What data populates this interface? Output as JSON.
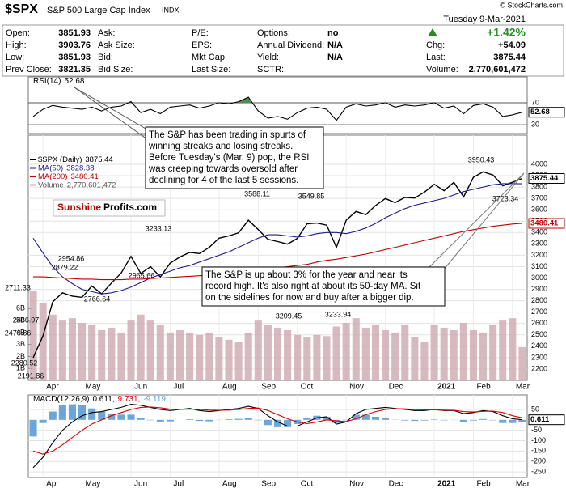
{
  "header": {
    "symbol": "$SPX",
    "name": "S&P 500 Large Cap Index",
    "exchange": "INDX",
    "copyright": "© StockCharts.com",
    "date": "Tuesday 9-Mar-2021",
    "change_pct": "+1.42%",
    "columns": [
      [
        {
          "label": "Open:",
          "value": "3851.93"
        },
        {
          "label": "High:",
          "value": "3903.76"
        },
        {
          "label": "Low:",
          "value": "3851.93"
        },
        {
          "label": "Prev Close:",
          "value": "3821.35"
        }
      ],
      [
        {
          "label": "Ask:"
        },
        {
          "label": "Ask Size:"
        },
        {
          "label": "Bid:"
        },
        {
          "label": "Bid Size:"
        }
      ],
      [
        {
          "label": "P/E:"
        },
        {
          "label": "EPS:"
        },
        {
          "label": "Mkt Cap:"
        },
        {
          "label": "Last Size:"
        }
      ],
      [
        {
          "label": "Options:",
          "value": "no"
        },
        {
          "label": "Annual Dividend:",
          "value": "N/A"
        },
        {
          "label": "Yield:",
          "value": "N/A"
        },
        {
          "label": "SCTR:"
        }
      ],
      [
        {
          "label": "Chg:",
          "value": "+54.09"
        },
        {
          "label": "Last:",
          "value": "3875.44"
        },
        {
          "label": "Volume:",
          "value": "2,770,601,472"
        }
      ]
    ]
  },
  "chart_data": [
    {
      "type": "line",
      "title": "RSI(14)",
      "ylim": [
        14,
        117
      ],
      "yticks": [
        30,
        70
      ],
      "grid": true,
      "overbought_color": "#4f8f4f",
      "series": [
        {
          "color": "#000000",
          "legend_value": "52.68",
          "label_box": true,
          "values": [
            45,
            58,
            65,
            62,
            60,
            58,
            62,
            55,
            62,
            64,
            72,
            52,
            58,
            50,
            62,
            64,
            66,
            60,
            64,
            70,
            68,
            72,
            80,
            55,
            42,
            45,
            40,
            52,
            60,
            62,
            58,
            38,
            62,
            68,
            64,
            66,
            70,
            62,
            66,
            64,
            66,
            70,
            60,
            64,
            50,
            65,
            68,
            62,
            45,
            48,
            52.68
          ]
        }
      ]
    },
    {
      "type": "line",
      "ylim": [
        2100,
        4256
      ],
      "yticks": [
        2200,
        2300,
        2400,
        2500,
        2600,
        2700,
        2800,
        2900,
        3000,
        3100,
        3200,
        3300,
        3400,
        3500,
        3600,
        3700,
        3800,
        3900,
        4000
      ],
      "grid": true,
      "y2lim": [
        0,
        20.5
      ],
      "y2ticks": [
        {
          "value": 1,
          "label": "1B"
        },
        {
          "value": 2,
          "label": "2B"
        },
        {
          "value": 3,
          "label": "3B"
        },
        {
          "value": 4,
          "label": "4B"
        },
        {
          "value": 5,
          "label": "5B"
        },
        {
          "value": 6,
          "label": "6B"
        }
      ],
      "categories": [
        null,
        "Apr",
        null,
        null,
        null,
        "May",
        null,
        null,
        null,
        null,
        "Jun",
        null,
        null,
        null,
        "Jul",
        null,
        null,
        null,
        null,
        "Aug",
        null,
        null,
        null,
        "Sep",
        null,
        null,
        null,
        "Oct",
        null,
        null,
        null,
        null,
        "Nov",
        null,
        null,
        null,
        "Dec",
        null,
        null,
        null,
        null,
        "2021",
        null,
        null,
        null,
        "Feb",
        null,
        null,
        null,
        "Mar",
        null
      ],
      "series": [
        {
          "name": "$SPX (Daily)",
          "color": "#000000",
          "legend_value": "3875.44",
          "label_box": true,
          "values": [
            2300,
            2490,
            2790,
            2870,
            2840,
            2830,
            2930,
            2860,
            2955,
            3044,
            3190,
            3040,
            3100,
            3010,
            3130,
            3185,
            3225,
            3215,
            3270,
            3350,
            3370,
            3397,
            3508,
            3426,
            3340,
            3320,
            3298,
            3348,
            3477,
            3483,
            3465,
            3270,
            3509,
            3585,
            3557,
            3638,
            3699,
            3663,
            3709,
            3703,
            3756,
            3824,
            3768,
            3841,
            3714,
            3886,
            3934,
            3906,
            3811,
            3842,
            3875.44
          ]
        },
        {
          "name": "MA(50)",
          "color": "#1c1c8c",
          "legend_value": "3828.38",
          "values": [
            3350,
            3220,
            3100,
            3010,
            2950,
            2900,
            2880,
            2860,
            2870,
            2890,
            2920,
            2960,
            3000,
            3030,
            3060,
            3090,
            3110,
            3140,
            3170,
            3200,
            3230,
            3270,
            3310,
            3350,
            3380,
            3380,
            3370,
            3360,
            3370,
            3390,
            3400,
            3400,
            3390,
            3410,
            3440,
            3480,
            3530,
            3570,
            3610,
            3640,
            3660,
            3680,
            3700,
            3730,
            3760,
            3780,
            3800,
            3820,
            3830,
            3830,
            3828.38
          ]
        },
        {
          "name": "MA(200)",
          "color": "#c00000",
          "legend_value": "3480.41",
          "label_box": true,
          "values": [
            3010,
            3010,
            3005,
            3000,
            2995,
            2990,
            2990,
            2985,
            2985,
            2985,
            2990,
            2990,
            2995,
            3000,
            3005,
            3010,
            3015,
            3020,
            3025,
            3030,
            3040,
            3050,
            3060,
            3070,
            3080,
            3090,
            3100,
            3110,
            3120,
            3140,
            3155,
            3165,
            3180,
            3195,
            3210,
            3230,
            3250,
            3270,
            3290,
            3310,
            3330,
            3350,
            3370,
            3390,
            3410,
            3425,
            3440,
            3455,
            3465,
            3475,
            3480.41
          ]
        },
        {
          "name": "Volume",
          "type": "bar",
          "axis": "y2",
          "color": "#c9a3ab",
          "legend_value": "2,770,601,472",
          "values": [
            7.5,
            6.5,
            5.5,
            5.0,
            5.2,
            4.8,
            4.6,
            4.2,
            4.4,
            4.0,
            5.0,
            5.5,
            5.0,
            4.6,
            4.0,
            4.2,
            4.0,
            3.8,
            4.0,
            3.6,
            3.4,
            3.2,
            4.0,
            5.0,
            4.6,
            4.4,
            4.2,
            3.8,
            3.6,
            3.8,
            3.7,
            4.5,
            4.8,
            5.2,
            4.4,
            4.6,
            4.2,
            4.0,
            4.6,
            3.6,
            3.2,
            4.6,
            4.4,
            4.2,
            4.8,
            4.2,
            4.0,
            4.6,
            5.0,
            5.2,
            2.770601472
          ]
        }
      ],
      "annotations": [
        "3950.43",
        "3723.34",
        "3588.11",
        "3549.85",
        "3233.13",
        "3209.45",
        "3233.94",
        "2954.86",
        "2879.22",
        "2965.66",
        "2766.64",
        "2711.33",
        "2466.97",
        "2478.86",
        "2280.52",
        "2191.86"
      ]
    },
    {
      "type": "line",
      "title": "MACD(12,26,9)",
      "ylim": [
        -277,
        120
      ],
      "yticks": [
        50,
        -50,
        -100,
        -150,
        -200,
        -250
      ],
      "grid": true,
      "categories": [
        null,
        "Apr",
        null,
        null,
        null,
        "May",
        null,
        null,
        null,
        null,
        "Jun",
        null,
        null,
        null,
        "Jul",
        null,
        null,
        null,
        null,
        "Aug",
        null,
        null,
        null,
        "Sep",
        null,
        null,
        null,
        "Oct",
        null,
        null,
        null,
        null,
        "Nov",
        null,
        null,
        null,
        "Dec",
        null,
        null,
        null,
        null,
        "2021",
        null,
        null,
        null,
        "Feb",
        null,
        null,
        null,
        "Mar",
        null
      ],
      "series": [
        {
          "type": "bar",
          "color": "#5b9bd5",
          "legend_value": "-9.119",
          "values": [
            -80,
            -15,
            40,
            70,
            75,
            70,
            55,
            40,
            30,
            25,
            25,
            10,
            -2,
            -8,
            -7,
            0,
            3,
            -5,
            -7,
            -1,
            3,
            5,
            10,
            -2,
            -25,
            -35,
            -35,
            -20,
            8,
            20,
            15,
            -15,
            -2,
            25,
            25,
            15,
            10,
            1,
            -3,
            -5,
            -3,
            2,
            -2,
            -1,
            -10,
            -3,
            4,
            -2,
            -15,
            -15,
            -9.119
          ]
        },
        {
          "color": "#000000",
          "legend_value": "0.611,",
          "label_box": true,
          "values": [
            -230,
            -180,
            -110,
            -50,
            -10,
            20,
            35,
            40,
            50,
            60,
            75,
            70,
            60,
            50,
            45,
            50,
            55,
            45,
            40,
            45,
            50,
            55,
            65,
            55,
            20,
            -10,
            -30,
            -30,
            -10,
            10,
            15,
            -20,
            -10,
            30,
            50,
            55,
            60,
            55,
            50,
            45,
            45,
            50,
            45,
            45,
            30,
            35,
            45,
            40,
            20,
            5,
            0.611
          ]
        },
        {
          "color": "#e00000",
          "legend_value": "9.731,",
          "values": [
            -150,
            -165,
            -150,
            -120,
            -85,
            -50,
            -20,
            0,
            20,
            35,
            50,
            60,
            62,
            58,
            52,
            50,
            52,
            50,
            47,
            46,
            47,
            50,
            55,
            57,
            45,
            25,
            5,
            -10,
            -18,
            -10,
            0,
            -5,
            -8,
            5,
            25,
            40,
            50,
            54,
            53,
            50,
            48,
            48,
            47,
            46,
            40,
            38,
            41,
            42,
            35,
            20,
            9.731
          ]
        }
      ]
    }
  ],
  "notes": [
    {
      "lines": [
        "The S&P has been trading in spurts of",
        "winning streaks and losing streaks.",
        "Before Tuesday's (Mar. 9) pop, the RSI",
        "was creeping towards oversold after",
        "declining for 4 of the last 5 sessions."
      ]
    },
    {
      "lines": [
        "The S&P is up about 3% for the year and near its",
        "record high. It's also right at about its 50-day MA. Sit",
        "on the sidelines for now and buy after a bigger dip."
      ]
    }
  ],
  "watermark": {
    "brand": "Sunshine",
    "site": "Profits.com"
  }
}
